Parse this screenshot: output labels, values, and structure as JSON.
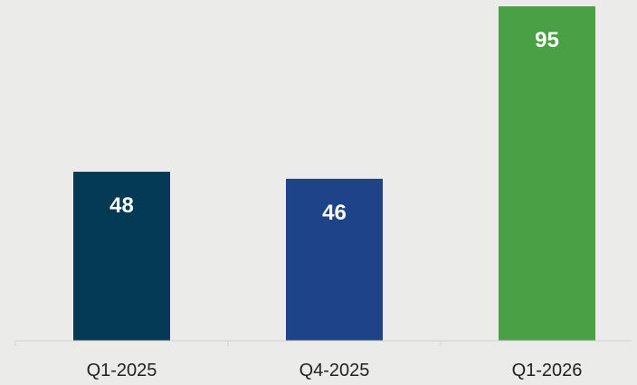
{
  "chart_data": {
    "type": "bar",
    "categories": [
      "Q1-2025",
      "Q4-2025",
      "Q1-2026"
    ],
    "values": [
      48,
      46,
      95
    ],
    "title": "",
    "xlabel": "",
    "ylabel": "",
    "ylim": [
      0,
      95
    ],
    "grid": false,
    "data_labels": true,
    "colors": [
      "#043a56",
      "#1f4389",
      "#4aa044"
    ],
    "axis_color": "#cfcfcf"
  }
}
